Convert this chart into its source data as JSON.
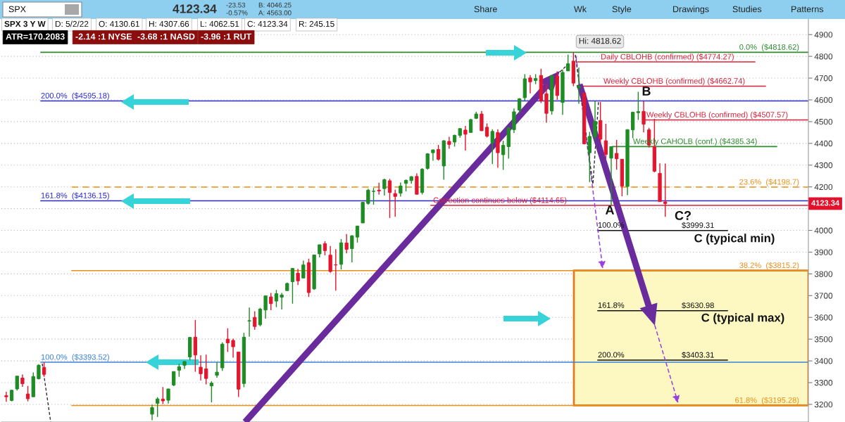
{
  "chart_data": {
    "type": "candlestick",
    "title": "SPX 3 Y W",
    "categories": [
      null,
      null,
      null,
      null,
      null,
      null,
      null,
      null,
      null,
      null,
      null,
      null,
      null,
      null,
      null,
      null,
      null,
      null,
      null,
      null,
      null,
      null,
      null,
      null,
      null,
      null,
      null,
      null,
      null,
      null,
      null,
      null,
      null,
      null,
      null,
      null,
      null,
      null,
      null,
      null,
      null,
      null,
      null,
      null,
      null,
      null,
      null,
      null,
      null,
      null,
      null,
      null,
      null,
      null,
      null,
      null,
      null,
      null,
      null,
      null,
      null,
      null,
      null,
      null,
      null,
      null,
      null,
      null,
      null,
      null,
      null,
      null,
      null,
      null,
      null,
      null,
      null,
      null,
      null,
      null,
      null,
      null,
      null,
      null,
      null,
      null,
      null,
      null,
      null,
      null,
      null,
      null,
      null,
      null,
      null,
      null,
      null,
      null,
      null,
      null,
      null,
      null,
      null,
      null,
      null,
      null,
      null,
      null,
      null,
      null,
      null,
      null,
      null,
      null,
      null,
      null,
      null,
      null,
      null,
      null,
      null,
      null,
      null,
      null,
      null,
      null,
      null,
      null,
      null,
      null,
      null,
      null,
      null,
      null,
      null,
      null,
      null,
      null,
      null,
      null,
      null,
      null,
      null,
      null,
      null,
      null,
      null,
      null,
      null
    ],
    "ohlc": [
      [
        3240,
        3258,
        3212,
        3235
      ],
      [
        3218,
        3267,
        3214,
        3265
      ],
      [
        3271,
        3330,
        3264,
        3330
      ],
      [
        3321,
        3337,
        3281,
        3295
      ],
      [
        3248,
        3285,
        3214,
        3226
      ],
      [
        3235,
        3347,
        3235,
        3328
      ],
      [
        3318,
        3385,
        3315,
        3380
      ],
      [
        3370,
        3393.52,
        3327,
        3338
      ],
      null,
      null,
      null,
      null,
      null,
      null,
      null,
      null,
      null,
      null,
      null,
      null,
      null,
      null,
      null,
      null,
      null,
      null,
      null,
      [
        3155,
        3198,
        3127,
        3185
      ],
      [
        3205,
        3233,
        3142,
        3225
      ],
      [
        3224,
        3280,
        3201,
        3216
      ],
      [
        3219,
        3272,
        3204,
        3271
      ],
      [
        3289,
        3352,
        3284,
        3351
      ],
      [
        3357,
        3387,
        3327,
        3373
      ],
      [
        3380,
        3399,
        3363,
        3397
      ],
      [
        3418,
        3509,
        3403,
        3508
      ],
      [
        3509,
        3588,
        3350,
        3427
      ],
      [
        3371,
        3425,
        3310,
        3341
      ],
      [
        3363,
        3429,
        3292,
        3319
      ],
      [
        3285,
        3306,
        3209,
        3298
      ],
      [
        3334,
        3393,
        3323,
        3348
      ],
      [
        3368,
        3485,
        3354,
        3477
      ],
      [
        3500,
        3550,
        3441,
        3483
      ],
      [
        3494,
        3502,
        3415,
        3465
      ],
      [
        3441,
        3441,
        3234,
        3270
      ],
      [
        3296,
        3529,
        3279,
        3509
      ],
      [
        3583,
        3645,
        3511,
        3585
      ],
      [
        3600,
        3628,
        3543,
        3558
      ],
      [
        3566,
        3644,
        3559,
        3638
      ],
      [
        3634,
        3699,
        3594,
        3699
      ],
      [
        3694,
        3712,
        3633,
        3663
      ],
      [
        3675,
        3726,
        3647,
        3709
      ],
      [
        3693,
        3712,
        3636,
        3703
      ],
      [
        3723,
        3760,
        3723,
        3756
      ],
      [
        3764,
        3827,
        3663,
        3825
      ],
      [
        3803,
        3823,
        3749,
        3768
      ],
      [
        3781,
        3861,
        3781,
        3841
      ],
      [
        3851,
        3870,
        3694,
        3714
      ],
      [
        3731,
        3887,
        3726,
        3887
      ],
      [
        3892,
        3934,
        3876,
        3934
      ],
      [
        3939,
        3950,
        3885,
        3907
      ],
      [
        3886,
        3928,
        3805,
        3811
      ],
      [
        3842,
        3914,
        3723,
        3841
      ],
      [
        3844,
        3960,
        3820,
        3943
      ],
      [
        3942,
        3983,
        3894,
        3913
      ],
      [
        3916,
        3978,
        3853,
        3975
      ],
      [
        3969,
        4021,
        3944,
        4020
      ],
      [
        4034,
        4130,
        4034,
        4129
      ],
      [
        4124,
        4191,
        4118,
        4185
      ],
      [
        4179,
        4195,
        4118,
        4180
      ],
      [
        4185,
        4219,
        4164,
        4181
      ],
      [
        4192,
        4238,
        4160,
        4233
      ],
      [
        4228,
        4237,
        4057,
        4174
      ],
      [
        4169,
        4187,
        4062,
        4156
      ],
      [
        4171,
        4220,
        4155,
        4204
      ],
      [
        4216,
        4234,
        4179,
        4230
      ],
      [
        4229,
        4249,
        4214,
        4247
      ],
      [
        4248,
        4262,
        4165,
        4166
      ],
      [
        4174,
        4286,
        4165,
        4281
      ],
      [
        4285,
        4355,
        4279,
        4352
      ],
      [
        4357,
        4372,
        4320,
        4370
      ],
      [
        4372,
        4393,
        4321,
        4327
      ],
      [
        4296,
        4415,
        4233,
        4412
      ],
      [
        4409,
        4430,
        4375,
        4395
      ],
      [
        4406,
        4440,
        4385,
        4437
      ],
      [
        4437,
        4469,
        4426,
        4468
      ],
      [
        4461,
        4480,
        4367,
        4442
      ],
      [
        4450,
        4513,
        4450,
        4509
      ],
      [
        4515,
        4545,
        4512,
        4535
      ],
      [
        4535,
        4549,
        4457,
        4458
      ],
      [
        4474,
        4492,
        4427,
        4433
      ],
      [
        4403,
        4465,
        4305,
        4455
      ],
      [
        4450,
        4465,
        4288,
        4357
      ],
      [
        4348,
        4412,
        4278,
        4391
      ],
      [
        4385,
        4475,
        4330,
        4471
      ],
      [
        4463,
        4560,
        4447,
        4545
      ],
      [
        4553,
        4608,
        4537,
        4605
      ],
      [
        4610,
        4718,
        4595,
        4697
      ],
      [
        4701,
        4714,
        4630,
        4683
      ],
      [
        4689,
        4718,
        4672,
        4698
      ],
      [
        4712,
        4743,
        4585,
        4595
      ],
      [
        4628,
        4672,
        4495,
        4538
      ],
      [
        4549,
        4713,
        4532,
        4712
      ],
      [
        4710,
        4731,
        4600,
        4620
      ],
      [
        4588,
        4740,
        4531,
        4726
      ],
      [
        4733,
        4808,
        4733,
        4766
      ],
      [
        4778,
        4818.62,
        4662.74,
        4677
      ],
      [
        4655,
        4749,
        4582,
        4663
      ],
      [
        4632,
        4632,
        4395,
        4398
      ],
      [
        4357,
        4453,
        4222,
        4432
      ],
      [
        4431,
        4595,
        4414,
        4501
      ],
      [
        4505,
        4590,
        4401,
        4419
      ],
      [
        4412,
        4490,
        4329,
        4349
      ],
      [
        4332,
        4385.34,
        4114.65,
        4385
      ],
      [
        4354,
        4416,
        4279,
        4329
      ],
      [
        4327,
        4327,
        4157,
        4204
      ],
      [
        4202,
        4465,
        4162,
        4463
      ],
      [
        4462,
        4546,
        4424,
        4543
      ],
      [
        4541,
        4637,
        4507.57,
        4546
      ],
      [
        4547,
        4594,
        4450,
        4488
      ],
      [
        4462,
        4471,
        4381,
        4392
      ],
      [
        4385,
        4513,
        4267,
        4272
      ],
      [
        4262,
        4308,
        4132,
        4132
      ],
      [
        4130.61,
        4307.66,
        4062.51,
        4123.34
      ],
      null,
      null,
      null,
      null,
      null,
      null,
      null,
      null,
      null,
      null,
      null,
      null,
      null,
      null,
      null,
      null,
      null,
      null,
      null,
      null,
      null,
      null,
      null,
      null,
      null,
      null
    ],
    "colors": [
      "#e3162f",
      "#1f8b24",
      "#1f8b24",
      "#e3162f",
      "#e3162f",
      "#1f8b24",
      "#1f8b24",
      "#e3162f",
      null,
      null,
      null,
      null,
      null,
      null,
      null,
      null,
      null,
      null,
      null,
      null,
      null,
      null,
      null,
      null,
      null,
      null,
      null,
      "#1f8b24",
      "#1f8b24",
      "#e3162f",
      "#1f8b24",
      "#1f8b24",
      "#1f8b24",
      "#1f8b24",
      "#1f8b24",
      "#e3162f",
      "#e3162f",
      "#e3162f",
      "#1f8b24",
      "#1f8b24",
      "#1f8b24",
      "#e3162f",
      "#e3162f",
      "#e3162f",
      "#1f8b24",
      "#1f8b24",
      "#e3162f",
      "#1f8b24",
      "#1f8b24",
      "#e3162f",
      "#1f8b24",
      "#1f8b24",
      "#1f8b24",
      "#1f8b24",
      "#e3162f",
      "#1f8b24",
      "#e3162f",
      "#1f8b24",
      "#1f8b24",
      "#e3162f",
      "#e3162f",
      "#e3162f",
      "#1f8b24",
      "#e3162f",
      "#1f8b24",
      "#1f8b24",
      "#1f8b24",
      "#1f8b24",
      "#1f8b24",
      "#e3162f",
      "#1f8b24",
      "#e3162f",
      "#e3162f",
      "#1f8b24",
      "#1f8b24",
      "#1f8b24",
      "#e3162f",
      "#1f8b24",
      "#1f8b24",
      "#1f8b24",
      "#e3162f",
      "#1f8b24",
      "#e3162f",
      "#1f8b24",
      "#1f8b24",
      "#e3162f",
      "#1f8b24",
      "#1f8b24",
      "#e3162f",
      "#e3162f",
      "#1f8b24",
      "#e3162f",
      "#1f8b24",
      "#1f8b24",
      "#1f8b24",
      "#1f8b24",
      "#1f8b24",
      "#e3162f",
      "#1f8b24",
      "#e3162f",
      "#e3162f",
      "#1f8b24",
      "#e3162f",
      "#1f8b24",
      "#1f8b24",
      "#e3162f",
      "#1f8b24",
      "#e3162f",
      "#1f8b24",
      "#1f8b24",
      "#e3162f",
      "#e3162f",
      "#1f8b24",
      "#e3162f",
      "#e3162f",
      "#1f8b24",
      "#1f8b24",
      "#1f8b24",
      "#e3162f",
      "#e3162f",
      "#e3162f",
      "#e3162f",
      "#e3162f",
      null,
      null,
      null,
      null,
      null,
      null,
      null,
      null,
      null,
      null,
      null,
      null,
      null,
      null,
      null,
      null,
      null,
      null,
      null,
      null,
      null,
      null,
      null,
      null,
      null,
      null
    ],
    "ylim": [
      3119,
      4975
    ],
    "yticks": [
      3200,
      3300,
      3400,
      3500,
      3600,
      3700,
      3800,
      3900,
      4000,
      {
        "value": 4100,
        "label": null
      },
      4200,
      4300,
      4400,
      4500,
      4600,
      4700,
      4800,
      4900
    ],
    "grid": "y",
    "tick_labels": "y",
    "bands": [
      {
        "axis": "y",
        "from": 3195.28,
        "to": 3815.2,
        "color": "#fdf8c2"
      }
    ],
    "ref_lines": [
      {
        "axis": "y",
        "value": 4818.62,
        "label": "0.0%  ($4818.62)",
        "color": "#2e8b2e"
      },
      {
        "axis": "y",
        "value": 4595.18,
        "label": "200.0%  ($4595.18)",
        "color": "#2a2ad0"
      },
      {
        "axis": "y",
        "value": 4136.15,
        "label": "161.8%  ($4136.15)",
        "color": "#2a2ad0"
      },
      {
        "axis": "y",
        "value": 3393.52,
        "label": "100.0%  ($3393.52)",
        "color": "#3a82d6"
      },
      {
        "axis": "y",
        "value": 4198.7,
        "label": "23.6%  ($4198.7)",
        "color": "#e8901a",
        "line_style": "dashed"
      },
      {
        "axis": "y",
        "value": 3815.2,
        "label": "38.2%  ($3815.2)",
        "color": "#e8901a"
      },
      {
        "axis": "y",
        "value": 3195.28,
        "label": "61.8%  ($3195.28)",
        "color": "#e8901a"
      },
      {
        "axis": "y",
        "value": 4774.27,
        "label": "Daily CBLOHB (confirmed) ($4774.27)",
        "color": "#e0203a"
      },
      {
        "axis": "y",
        "value": 4662.74,
        "label": "Weekly CBLOHB (confirmed) ($4662.74)",
        "color": "#e0203a"
      },
      {
        "axis": "y",
        "value": 4507.57,
        "label": "Weekly CBLOHB (confirmed) ($4507.57)",
        "color": "#e0203a"
      },
      {
        "axis": "y",
        "value": 4385.34,
        "label": "Weekly CAHOLB (conf.) ($4385.34)",
        "color": "#2e8b2e"
      },
      {
        "axis": "y",
        "value": 4114.65,
        "label": "Correction continues below ($4114.65)",
        "color": "#e0203a"
      },
      {
        "axis": "y",
        "value": 3999.31,
        "label": "$3999.31",
        "color": "#111111"
      },
      {
        "axis": "y",
        "value": 3630.98,
        "label": "$3630.98",
        "color": "#111111"
      },
      {
        "axis": "y",
        "value": 3403.31,
        "label": "$3403.31",
        "color": "#111111"
      }
    ],
    "annotations": [
      "SPX",
      "4123.34",
      "-23.53",
      "-0.57%",
      "B: 4046.25",
      "A: 4563.00",
      "Share",
      "Wk",
      "Style",
      "Drawings",
      "Studies",
      "Patterns",
      "D: 5/2/22",
      "O: 4130.61",
      "H: 4307.66",
      "L: 4062.51",
      "C: 4123.34",
      "R: 245.15",
      "ATR=170.2083",
      "-2.14 :1 NYSE",
      "-3.68 :1 NASD",
      "-3.96 :1 RUT",
      {
        "text": "Hi: 4818.62",
        "y": 4818.62
      },
      "A",
      "B",
      "C?",
      "C (typical min)",
      "C (typical max)",
      "100.0%",
      "161.8%",
      "200.0%",
      "4123.34"
    ]
  }
}
